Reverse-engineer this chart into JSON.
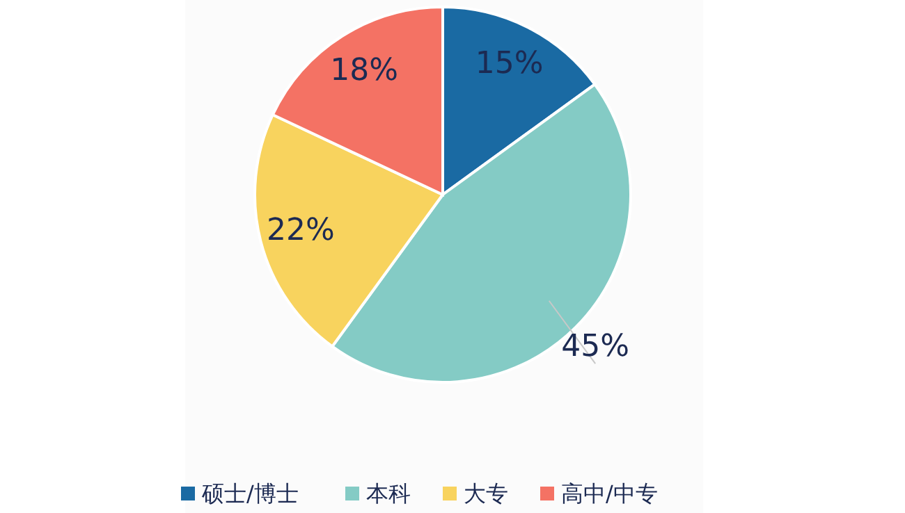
{
  "chart_data": {
    "type": "pie",
    "categories": [
      "硕士/博士",
      "本科",
      "大专",
      "高中/中专"
    ],
    "values": [
      15,
      45,
      22,
      18
    ],
    "value_labels": [
      "15%",
      "45%",
      "22%",
      "18%"
    ],
    "colors": [
      "#1a6aa3",
      "#84cbc5",
      "#f8d35e",
      "#f47264"
    ],
    "legend": "bottom"
  }
}
